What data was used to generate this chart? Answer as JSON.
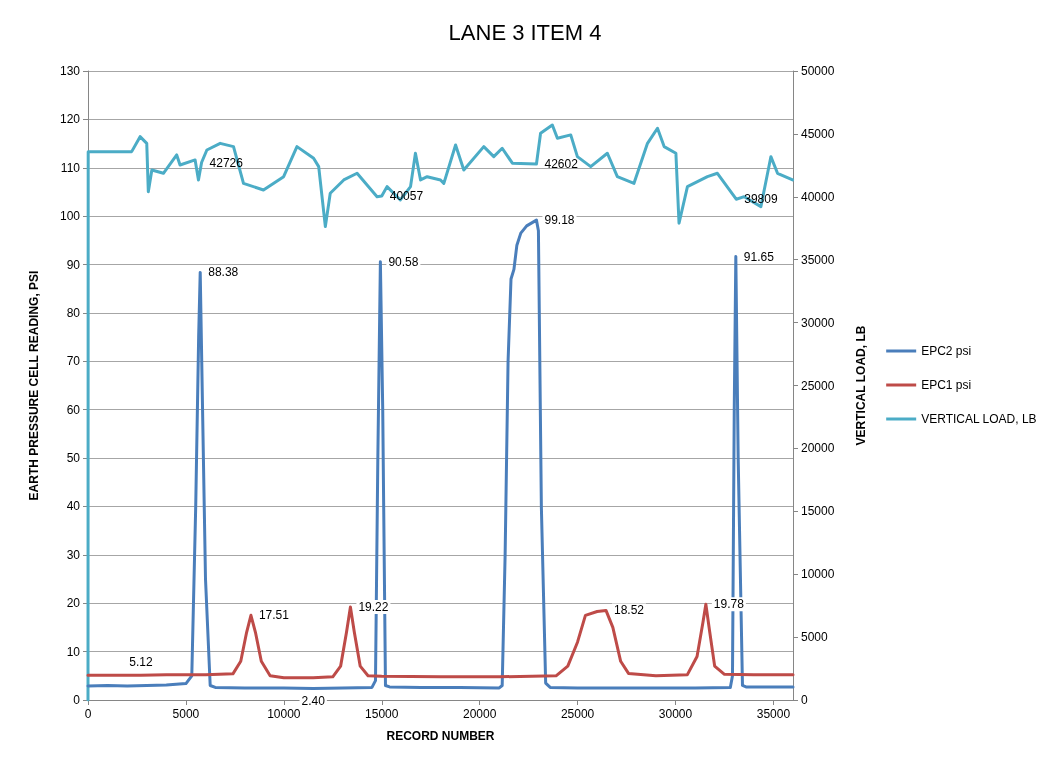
{
  "chart_data": {
    "type": "line",
    "title": "LANE 3 ITEM 4",
    "xlabel": "RECORD NUMBER",
    "ylabel": "EARTH PRESSURE CELL READING, PSI",
    "y2label": "VERTICAL LOAD, LB",
    "xlim": [
      0,
      36000
    ],
    "xticks": [
      0,
      5000,
      10000,
      15000,
      20000,
      25000,
      30000,
      35000
    ],
    "ylim": [
      0,
      130
    ],
    "yticks": [
      0,
      10,
      20,
      30,
      40,
      50,
      60,
      70,
      80,
      90,
      100,
      110,
      120,
      130
    ],
    "y2lim": [
      0,
      50000
    ],
    "y2ticks": [
      0,
      5000,
      10000,
      15000,
      20000,
      25000,
      30000,
      35000,
      40000,
      45000,
      50000
    ],
    "grid": "y",
    "legend": "right",
    "marker": "none",
    "line_style": "solid",
    "series": [
      {
        "name": "EPC2 psi",
        "color": "#4a7ebb",
        "x": [
          0,
          1000,
          2000,
          3000,
          4000,
          5000,
          5300,
          5500,
          5650,
          5730,
          5850,
          6000,
          6240,
          6500,
          8000,
          10000,
          11500,
          13000,
          14500,
          14680,
          14800,
          14930,
          15050,
          15190,
          15400,
          17000,
          19000,
          21000,
          21150,
          21300,
          21450,
          21600,
          21750,
          21900,
          22100,
          22400,
          22900,
          23000,
          23150,
          23370,
          23600,
          25000,
          27000,
          29000,
          31000,
          32800,
          32910,
          33000,
          33080,
          33200,
          33420,
          33600,
          35000,
          36000
        ],
        "values": [
          2.9,
          3.0,
          2.9,
          3.0,
          3.1,
          3.4,
          5,
          40,
          75,
          88.38,
          60,
          25,
          3,
          2.6,
          2.5,
          2.5,
          2.4,
          2.5,
          2.6,
          4,
          50,
          90.58,
          60,
          3,
          2.7,
          2.6,
          2.6,
          2.5,
          3,
          30,
          70,
          87,
          89,
          94,
          96.5,
          98,
          99.18,
          97,
          40,
          3.5,
          2.6,
          2.5,
          2.5,
          2.5,
          2.5,
          2.6,
          5,
          60,
          91.65,
          50,
          3,
          2.7,
          2.7,
          2.7
        ],
        "value_labels": [
          null,
          null,
          null,
          null,
          null,
          null,
          null,
          null,
          null,
          "88.38",
          null,
          null,
          null,
          null,
          null,
          null,
          "2.40",
          null,
          null,
          null,
          null,
          "90.58",
          null,
          null,
          null,
          null,
          null,
          null,
          null,
          null,
          null,
          null,
          null,
          null,
          null,
          null,
          "99.18",
          null,
          null,
          null,
          null,
          null,
          null,
          null,
          null,
          null,
          null,
          null,
          "91.65",
          null,
          null,
          null,
          null,
          null
        ]
      },
      {
        "name": "EPC1 psi",
        "color": "#be4b48",
        "x": [
          0,
          1000,
          2700,
          4000,
          6000,
          7400,
          7800,
          8100,
          8320,
          8550,
          8850,
          9300,
          10000,
          11500,
          12500,
          12900,
          13200,
          13400,
          13600,
          13900,
          14300,
          15000,
          18000,
          21000,
          23900,
          24500,
          25000,
          25400,
          26000,
          26450,
          26800,
          27200,
          27600,
          29000,
          30600,
          31100,
          31400,
          31550,
          31750,
          32000,
          32500,
          34000,
          36000
        ],
        "values": [
          5.1,
          5.1,
          5.12,
          5.2,
          5.2,
          5.4,
          8,
          14,
          17.51,
          14,
          8,
          5.0,
          4.6,
          4.6,
          4.8,
          7,
          14,
          19.22,
          14,
          7,
          5.0,
          4.9,
          4.8,
          4.8,
          5.0,
          7,
          12,
          17.5,
          18.3,
          18.52,
          15,
          8,
          5.5,
          5.0,
          5.2,
          9,
          16,
          19.78,
          14,
          7,
          5.3,
          5.2,
          5.2
        ],
        "value_labels": [
          null,
          null,
          "5.12",
          null,
          null,
          null,
          null,
          null,
          "17.51",
          null,
          null,
          null,
          null,
          null,
          null,
          null,
          null,
          "19.22",
          null,
          null,
          null,
          null,
          null,
          null,
          null,
          null,
          null,
          null,
          null,
          "18.52",
          null,
          null,
          null,
          null,
          null,
          null,
          null,
          "19.78",
          null,
          null,
          null,
          null,
          null
        ]
      },
      {
        "name": "VERTICAL LOAD, LB",
        "color": "#4bacc6",
        "axis": "y2",
        "x": [
          0,
          10,
          2230,
          2660,
          3000,
          3080,
          3260,
          3850,
          4530,
          4700,
          5470,
          5640,
          5800,
          6070,
          6750,
          7430,
          7940,
          8960,
          9990,
          10670,
          11520,
          11780,
          12120,
          12370,
          13060,
          13740,
          14760,
          15000,
          15270,
          15950,
          16470,
          16720,
          16980,
          17320,
          18000,
          18170,
          18770,
          19190,
          20210,
          20720,
          21150,
          21670,
          22900,
          23110,
          23710,
          23970,
          24650,
          24990,
          25670,
          26520,
          27030,
          27880,
          28570,
          29080,
          29420,
          30020,
          30180,
          30610,
          31630,
          32140,
          33100,
          33510,
          34360,
          34870,
          35210,
          35980
        ],
        "values": [
          0,
          43590,
          43590,
          44780,
          44250,
          40410,
          42130,
          41870,
          43330,
          42530,
          42930,
          41340,
          42726,
          43720,
          44250,
          43990,
          41070,
          40540,
          41600,
          43990,
          43060,
          42400,
          37630,
          40280,
          41340,
          41870,
          40010,
          40057,
          40810,
          39750,
          40810,
          43460,
          41340,
          41600,
          41340,
          41070,
          44120,
          42130,
          43990,
          43190,
          43860,
          42670,
          42602,
          45050,
          45710,
          44650,
          44920,
          43190,
          42400,
          43460,
          41600,
          41070,
          44250,
          45450,
          43990,
          43460,
          37900,
          40810,
          41600,
          41870,
          39809,
          40010,
          39220,
          43190,
          41870,
          41340
        ],
        "value_labels": [
          null,
          null,
          null,
          null,
          null,
          null,
          null,
          null,
          null,
          null,
          null,
          null,
          "42726",
          null,
          null,
          null,
          null,
          null,
          null,
          null,
          null,
          null,
          null,
          null,
          null,
          null,
          null,
          "40057",
          null,
          null,
          null,
          null,
          null,
          null,
          null,
          null,
          null,
          null,
          null,
          null,
          null,
          null,
          "42602",
          null,
          null,
          null,
          null,
          null,
          null,
          null,
          null,
          null,
          null,
          null,
          null,
          null,
          null,
          null,
          null,
          null,
          "39809",
          null,
          null,
          null,
          null,
          null
        ]
      }
    ]
  }
}
